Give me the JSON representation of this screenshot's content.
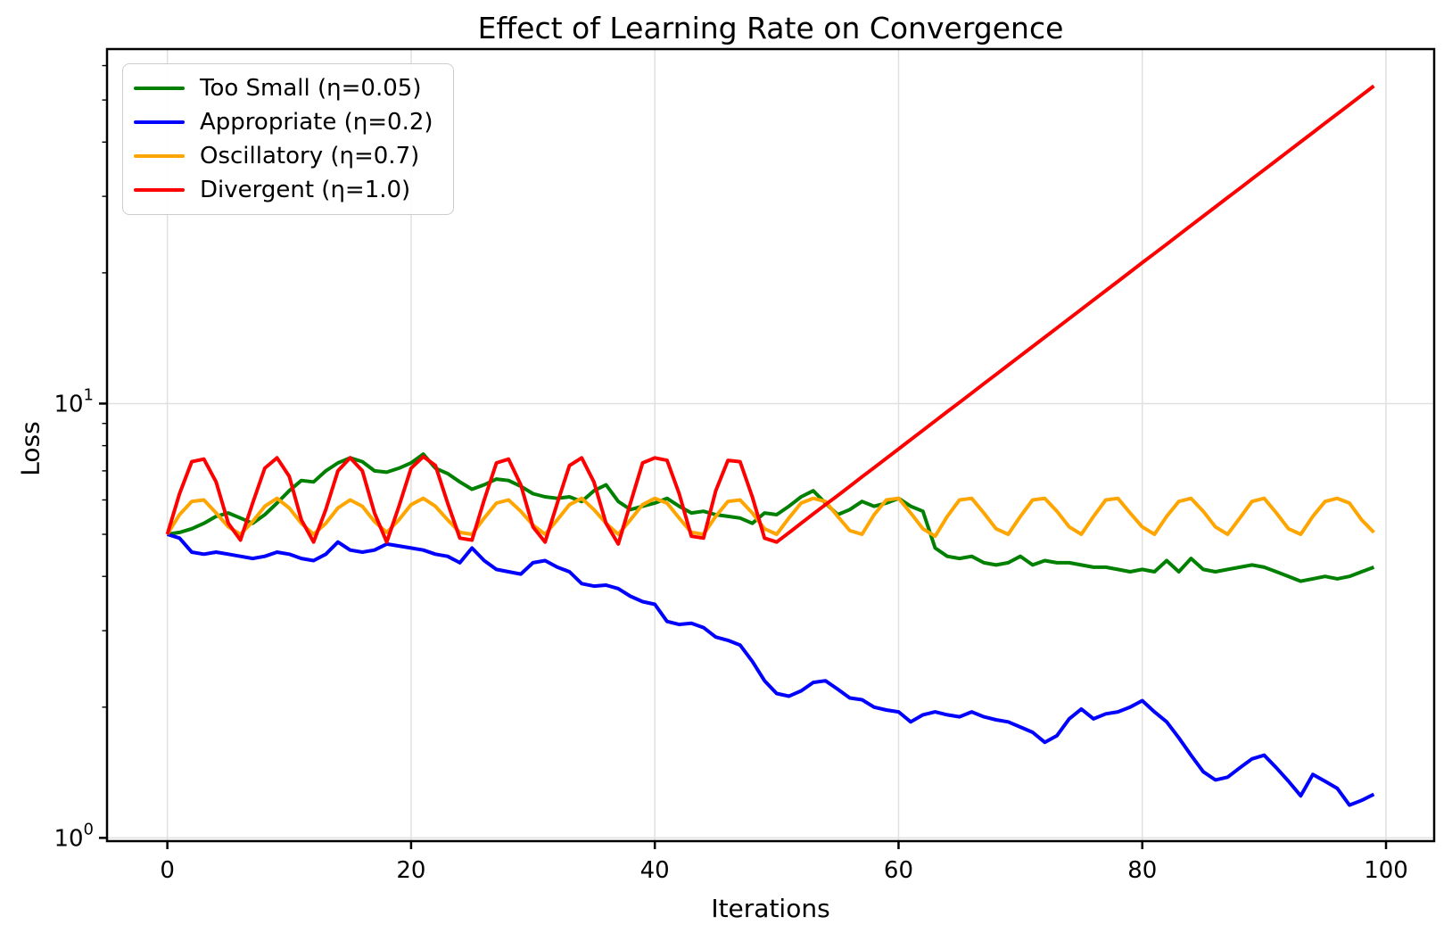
{
  "chart_data": {
    "type": "line",
    "title": "Effect of Learning Rate on Convergence",
    "xlabel": "Iterations",
    "ylabel": "Loss",
    "xscale": "linear",
    "yscale": "log",
    "xlim": [
      -4.95,
      103.95
    ],
    "ylim": [
      0.983,
      65.5
    ],
    "x_ticks": [
      0,
      20,
      40,
      60,
      80,
      100
    ],
    "y_ticks": [
      {
        "value": 1,
        "base": "10",
        "exp": "0",
        "label": "10^0"
      },
      {
        "value": 10,
        "base": "10",
        "exp": "1",
        "label": "10^1"
      }
    ],
    "grid": true,
    "grid_color": "#e0e0e0",
    "spine_color": "#000000",
    "legend_position": "upper left",
    "x": [
      0,
      1,
      2,
      3,
      4,
      5,
      6,
      7,
      8,
      9,
      10,
      11,
      12,
      13,
      14,
      15,
      16,
      17,
      18,
      19,
      20,
      21,
      22,
      23,
      24,
      25,
      26,
      27,
      28,
      29,
      30,
      31,
      32,
      33,
      34,
      35,
      36,
      37,
      38,
      39,
      40,
      41,
      42,
      43,
      44,
      45,
      46,
      47,
      48,
      49,
      50,
      51,
      52,
      53,
      54,
      55,
      56,
      57,
      58,
      59,
      60,
      61,
      62,
      63,
      64,
      65,
      66,
      67,
      68,
      69,
      70,
      71,
      72,
      73,
      74,
      75,
      76,
      77,
      78,
      79,
      80,
      81,
      82,
      83,
      84,
      85,
      86,
      87,
      88,
      89,
      90,
      91,
      92,
      93,
      94,
      95,
      96,
      97,
      98,
      99
    ],
    "series": [
      {
        "id": "too-small",
        "label": "Too Small (η=0.05)",
        "color": "#008000",
        "values": [
          5.0,
          5.05,
          5.15,
          5.3,
          5.5,
          5.6,
          5.45,
          5.3,
          5.55,
          5.9,
          6.3,
          6.65,
          6.6,
          7.0,
          7.3,
          7.5,
          7.35,
          7.0,
          6.95,
          7.1,
          7.3,
          7.65,
          7.1,
          6.9,
          6.6,
          6.35,
          6.5,
          6.7,
          6.65,
          6.45,
          6.2,
          6.1,
          6.05,
          6.1,
          5.95,
          6.3,
          6.5,
          5.95,
          5.7,
          5.8,
          5.9,
          6.05,
          5.8,
          5.6,
          5.65,
          5.55,
          5.5,
          5.45,
          5.3,
          5.6,
          5.55,
          5.8,
          6.1,
          6.3,
          5.9,
          5.55,
          5.7,
          5.95,
          5.8,
          5.9,
          6.05,
          5.8,
          5.65,
          4.65,
          4.45,
          4.4,
          4.45,
          4.3,
          4.25,
          4.3,
          4.45,
          4.25,
          4.35,
          4.3,
          4.3,
          4.25,
          4.2,
          4.2,
          4.15,
          4.1,
          4.15,
          4.1,
          4.35,
          4.1,
          4.4,
          4.15,
          4.1,
          4.15,
          4.2,
          4.25,
          4.2,
          4.1,
          4.0,
          3.9,
          3.95,
          4.0,
          3.95,
          4.0,
          4.1,
          4.2
        ]
      },
      {
        "id": "appropriate",
        "label": "Appropriate (η=0.2)",
        "color": "#0000ff",
        "values": [
          5.0,
          4.9,
          4.55,
          4.5,
          4.55,
          4.5,
          4.45,
          4.4,
          4.45,
          4.55,
          4.5,
          4.4,
          4.35,
          4.5,
          4.8,
          4.6,
          4.55,
          4.6,
          4.75,
          4.7,
          4.65,
          4.6,
          4.5,
          4.45,
          4.3,
          4.65,
          4.35,
          4.15,
          4.1,
          4.05,
          4.3,
          4.35,
          4.2,
          4.1,
          3.85,
          3.8,
          3.82,
          3.75,
          3.6,
          3.5,
          3.45,
          3.15,
          3.1,
          3.12,
          3.05,
          2.9,
          2.85,
          2.78,
          2.55,
          2.3,
          2.15,
          2.12,
          2.18,
          2.28,
          2.3,
          2.2,
          2.1,
          2.08,
          2.0,
          1.97,
          1.95,
          1.85,
          1.92,
          1.95,
          1.92,
          1.9,
          1.95,
          1.9,
          1.87,
          1.85,
          1.8,
          1.75,
          1.66,
          1.72,
          1.88,
          1.98,
          1.88,
          1.93,
          1.95,
          2.0,
          2.07,
          1.95,
          1.85,
          1.7,
          1.55,
          1.42,
          1.36,
          1.38,
          1.45,
          1.52,
          1.55,
          1.45,
          1.35,
          1.25,
          1.4,
          1.35,
          1.3,
          1.19,
          1.22,
          1.26
        ]
      },
      {
        "id": "oscillatory",
        "label": "Oscillatory (η=0.7)",
        "color": "#ffa500",
        "values": [
          5.0,
          5.55,
          5.95,
          6.0,
          5.6,
          5.2,
          5.0,
          5.35,
          5.8,
          6.05,
          5.75,
          5.3,
          5.0,
          5.3,
          5.75,
          6.0,
          5.8,
          5.35,
          5.05,
          5.4,
          5.85,
          6.05,
          5.8,
          5.4,
          5.05,
          5.0,
          5.45,
          5.9,
          6.0,
          5.65,
          5.25,
          5.0,
          5.4,
          5.85,
          6.05,
          5.7,
          5.3,
          5.0,
          5.4,
          5.85,
          6.05,
          5.9,
          5.45,
          5.05,
          5.0,
          5.5,
          5.95,
          6.0,
          5.6,
          5.15,
          5.0,
          5.45,
          5.9,
          6.05,
          5.95,
          5.5,
          5.1,
          5.0,
          5.55,
          6.0,
          6.05,
          5.6,
          5.15,
          4.95,
          5.5,
          6.0,
          6.05,
          5.6,
          5.15,
          5.0,
          5.5,
          6.0,
          6.05,
          5.65,
          5.2,
          5.0,
          5.5,
          6.0,
          6.05,
          5.6,
          5.2,
          5.0,
          5.5,
          5.95,
          6.05,
          5.65,
          5.2,
          5.0,
          5.45,
          5.95,
          6.05,
          5.6,
          5.15,
          5.0,
          5.5,
          5.95,
          6.05,
          5.9,
          5.4,
          5.05
        ]
      },
      {
        "id": "divergent",
        "label": "Divergent (η=1.0)",
        "color": "#ff0000",
        "values": [
          5.0,
          6.2,
          7.35,
          7.45,
          6.6,
          5.3,
          4.85,
          5.9,
          7.1,
          7.5,
          6.8,
          5.4,
          4.8,
          5.7,
          7.0,
          7.5,
          7.0,
          5.6,
          4.8,
          5.8,
          7.1,
          7.55,
          7.2,
          5.9,
          4.9,
          4.85,
          6.0,
          7.3,
          7.45,
          6.5,
          5.2,
          4.8,
          5.9,
          7.2,
          7.5,
          6.6,
          5.3,
          4.75,
          5.9,
          7.3,
          7.5,
          7.4,
          6.2,
          4.95,
          4.9,
          6.3,
          7.4,
          7.35,
          6.1,
          4.9,
          4.8,
          5.04,
          5.3,
          5.57,
          5.85,
          6.14,
          6.45,
          6.78,
          7.12,
          7.48,
          7.86,
          8.26,
          8.68,
          9.12,
          9.58,
          10.06,
          10.57,
          11.11,
          11.67,
          12.26,
          12.88,
          13.53,
          14.21,
          14.93,
          15.69,
          16.48,
          17.32,
          18.19,
          19.11,
          20.08,
          21.1,
          22.16,
          23.28,
          24.46,
          25.7,
          27.0,
          28.36,
          29.8,
          31.3,
          32.88,
          34.55,
          36.29,
          38.13,
          40.06,
          42.08,
          44.21,
          46.44,
          48.79,
          51.26,
          53.85
        ]
      }
    ]
  }
}
